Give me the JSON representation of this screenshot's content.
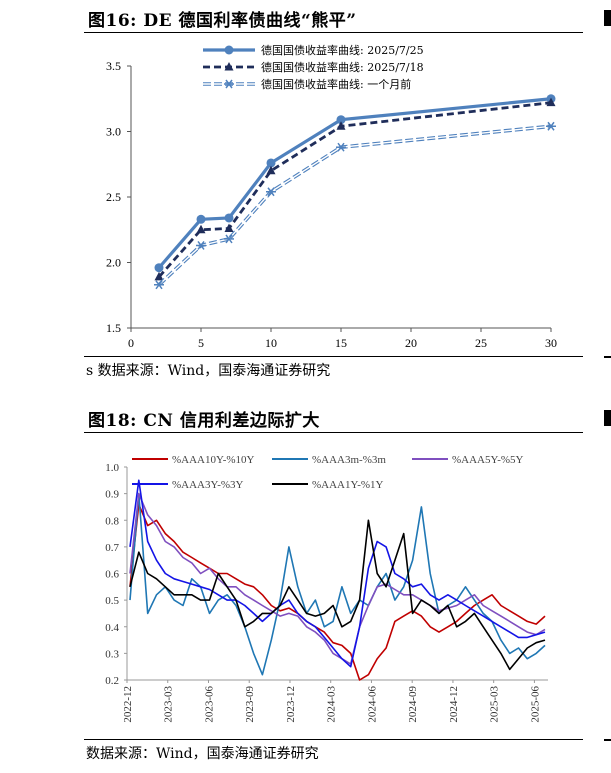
{
  "figure1": {
    "title": "图16:  DE 德国利率债曲线“熊平”",
    "source": "s 数据来源：Wind，国泰海通证券研究"
  },
  "figure2": {
    "title": "图18:  CN 信用利差边际扩大",
    "source": "数据来源：Wind，国泰海通证券研究"
  },
  "chart_data": [
    {
      "type": "line",
      "title": "DE 德国利率债曲线“熊平”",
      "xlabel": "",
      "ylabel": "",
      "xlim": [
        0,
        30
      ],
      "ylim": [
        1.5,
        3.5
      ],
      "xticks": [
        0,
        5,
        10,
        15,
        20,
        25,
        30
      ],
      "yticks": [
        1.5,
        2.0,
        2.5,
        3.0,
        3.5
      ],
      "x": [
        2,
        5,
        7,
        10,
        15,
        30
      ],
      "grid": false,
      "legend": "top",
      "series": [
        {
          "name": "德国国债收益率曲线: 2025/7/25",
          "color": "#4f81bd",
          "style": "solid-circle",
          "values": [
            1.96,
            2.33,
            2.34,
            2.76,
            3.09,
            3.25
          ]
        },
        {
          "name": "德国国债收益率曲线: 2025/7/18",
          "color": "#1f2d5a",
          "style": "dashed-triangle",
          "values": [
            1.89,
            2.25,
            2.26,
            2.7,
            3.04,
            3.22
          ]
        },
        {
          "name": "德国国债收益率曲线: 一个月前",
          "color": "#4f81bd",
          "style": "double-star",
          "values": [
            1.83,
            2.13,
            2.18,
            2.54,
            2.88,
            3.04
          ]
        }
      ]
    },
    {
      "type": "line",
      "title": "CN 信用利差边际扩大",
      "xlabel": "",
      "ylabel": "",
      "ylim": [
        0.2,
        1.0
      ],
      "yticks": [
        "0.2",
        "0.3",
        "0.4",
        "0.5",
        "0.6",
        "0.7",
        "0.8",
        "0.9",
        "1.0"
      ],
      "xticks": [
        "2022-12",
        "2023-03",
        "2023-06",
        "2023-09",
        "2023-12",
        "2024-03",
        "2024-06",
        "2024-09",
        "2024-12",
        "2025-03",
        "2025-06"
      ],
      "x_start": "2022-12",
      "x_end": "2025-07",
      "grid": false,
      "legend": "top",
      "series": [
        {
          "name": "%AAA10Y-%10Y",
          "color": "#c00000",
          "values": [
            0.55,
            0.86,
            0.78,
            0.8,
            0.75,
            0.72,
            0.68,
            0.66,
            0.64,
            0.62,
            0.6,
            0.6,
            0.58,
            0.56,
            0.55,
            0.52,
            0.48,
            0.46,
            0.47,
            0.45,
            0.42,
            0.4,
            0.38,
            0.34,
            0.33,
            0.3,
            0.2,
            0.22,
            0.28,
            0.32,
            0.42,
            0.44,
            0.46,
            0.44,
            0.4,
            0.38,
            0.4,
            0.42,
            0.45,
            0.48,
            0.5,
            0.52,
            0.48,
            0.46,
            0.44,
            0.42,
            0.41,
            0.44
          ]
        },
        {
          "name": "%AAA3m-%3m",
          "color": "#1f77b4",
          "values": [
            0.5,
            0.9,
            0.45,
            0.52,
            0.55,
            0.5,
            0.48,
            0.58,
            0.55,
            0.45,
            0.5,
            0.52,
            0.48,
            0.4,
            0.3,
            0.22,
            0.35,
            0.5,
            0.7,
            0.55,
            0.45,
            0.5,
            0.4,
            0.42,
            0.55,
            0.45,
            0.5,
            0.48,
            0.55,
            0.6,
            0.5,
            0.55,
            0.65,
            0.85,
            0.6,
            0.45,
            0.48,
            0.5,
            0.55,
            0.5,
            0.45,
            0.42,
            0.35,
            0.3,
            0.32,
            0.28,
            0.3,
            0.33
          ]
        },
        {
          "name": "%AAA5Y-%5Y",
          "color": "#7f4fbf",
          "values": [
            0.6,
            0.9,
            0.82,
            0.78,
            0.72,
            0.7,
            0.66,
            0.64,
            0.6,
            0.62,
            0.58,
            0.55,
            0.55,
            0.52,
            0.5,
            0.48,
            0.46,
            0.44,
            0.45,
            0.44,
            0.4,
            0.38,
            0.35,
            0.3,
            0.28,
            0.26,
            0.4,
            0.48,
            0.55,
            0.56,
            0.54,
            0.52,
            0.52,
            0.5,
            0.48,
            0.46,
            0.47,
            0.48,
            0.5,
            0.52,
            0.48,
            0.46,
            0.44,
            0.42,
            0.4,
            0.38,
            0.37,
            0.39
          ]
        },
        {
          "name": "%AAA3Y-%3Y",
          "color": "#1414e6",
          "values": [
            0.7,
            0.95,
            0.72,
            0.65,
            0.6,
            0.58,
            0.57,
            0.56,
            0.55,
            0.54,
            0.52,
            0.5,
            0.5,
            0.48,
            0.45,
            0.42,
            0.45,
            0.48,
            0.5,
            0.45,
            0.42,
            0.4,
            0.36,
            0.32,
            0.28,
            0.25,
            0.4,
            0.62,
            0.72,
            0.7,
            0.6,
            0.58,
            0.55,
            0.56,
            0.52,
            0.5,
            0.52,
            0.5,
            0.48,
            0.46,
            0.44,
            0.42,
            0.4,
            0.38,
            0.36,
            0.36,
            0.37,
            0.38
          ]
        },
        {
          "name": "%AAA1Y-%1Y",
          "color": "#000000",
          "values": [
            0.55,
            0.68,
            0.6,
            0.58,
            0.55,
            0.52,
            0.52,
            0.52,
            0.5,
            0.5,
            0.6,
            0.55,
            0.5,
            0.4,
            0.42,
            0.45,
            0.45,
            0.48,
            0.55,
            0.5,
            0.45,
            0.44,
            0.45,
            0.48,
            0.4,
            0.42,
            0.5,
            0.8,
            0.6,
            0.55,
            0.65,
            0.75,
            0.45,
            0.5,
            0.48,
            0.45,
            0.48,
            0.4,
            0.42,
            0.45,
            0.4,
            0.35,
            0.3,
            0.24,
            0.28,
            0.32,
            0.34,
            0.35
          ]
        }
      ]
    }
  ]
}
